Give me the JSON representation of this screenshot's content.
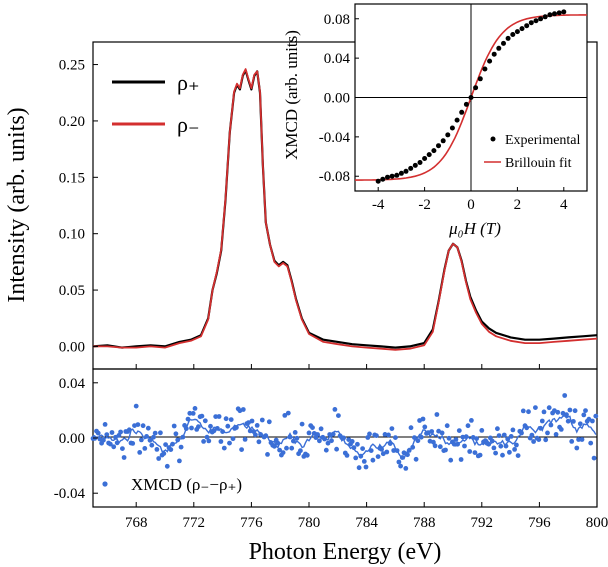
{
  "chart_data": [
    {
      "id": "main-spectrum",
      "type": "line",
      "xlabel": "",
      "ylabel": "Intensity (arb. units)",
      "xlim": [
        765,
        800
      ],
      "ylim": [
        -0.02,
        0.27
      ],
      "yticks": [
        "0.00",
        "0.05",
        "0.10",
        "0.15",
        "0.20",
        "0.25"
      ],
      "legend": {
        "placement": "top-left"
      },
      "series": [
        {
          "name": "ρ₊",
          "color": "#000000",
          "x": [
            765,
            766,
            767,
            768,
            769,
            770,
            771,
            771.8,
            772.5,
            773,
            773.3,
            773.6,
            773.9,
            774.2,
            774.5,
            774.8,
            775.0,
            775.2,
            775.4,
            775.6,
            775.8,
            776.0,
            776.2,
            776.4,
            776.6,
            776.8,
            777.0,
            777.3,
            777.6,
            777.9,
            778.2,
            778.5,
            778.8,
            779.1,
            779.5,
            780,
            781,
            782,
            783,
            784,
            785,
            786,
            787,
            788,
            788.6,
            789.0,
            789.4,
            789.7,
            790.0,
            790.3,
            790.6,
            790.9,
            791.2,
            791.6,
            792.0,
            792.5,
            793,
            794,
            795,
            796,
            797,
            798,
            799,
            800
          ],
          "y": [
            0.0,
            0.001,
            -0.001,
            0.0,
            0.001,
            0.0,
            0.004,
            0.006,
            0.01,
            0.025,
            0.05,
            0.065,
            0.085,
            0.13,
            0.19,
            0.225,
            0.232,
            0.228,
            0.24,
            0.245,
            0.236,
            0.228,
            0.24,
            0.244,
            0.225,
            0.16,
            0.11,
            0.09,
            0.076,
            0.072,
            0.075,
            0.072,
            0.058,
            0.042,
            0.025,
            0.012,
            0.006,
            0.004,
            0.002,
            0.001,
            0.0,
            -0.001,
            0.0,
            0.003,
            0.015,
            0.04,
            0.068,
            0.085,
            0.091,
            0.088,
            0.076,
            0.058,
            0.044,
            0.032,
            0.022,
            0.016,
            0.012,
            0.008,
            0.006,
            0.006,
            0.007,
            0.008,
            0.009,
            0.01
          ]
        },
        {
          "name": "ρ₋",
          "color": "#d32f2f",
          "x": [
            765,
            766,
            767,
            768,
            769,
            770,
            771,
            771.8,
            772.5,
            773,
            773.3,
            773.6,
            773.9,
            774.2,
            774.5,
            774.8,
            775.0,
            775.2,
            775.4,
            775.6,
            775.8,
            776.0,
            776.2,
            776.4,
            776.6,
            776.8,
            777.0,
            777.3,
            777.6,
            777.9,
            778.2,
            778.5,
            778.8,
            779.1,
            779.5,
            780,
            781,
            782,
            783,
            784,
            785,
            786,
            787,
            788,
            788.6,
            789.0,
            789.4,
            789.7,
            790.0,
            790.3,
            790.6,
            790.9,
            791.2,
            791.6,
            792.0,
            792.5,
            793,
            794,
            795,
            796,
            797,
            798,
            799,
            800
          ],
          "y": [
            0.0,
            0.0,
            -0.001,
            -0.001,
            0.0,
            -0.001,
            0.003,
            0.005,
            0.009,
            0.024,
            0.05,
            0.066,
            0.086,
            0.131,
            0.19,
            0.226,
            0.233,
            0.229,
            0.241,
            0.246,
            0.237,
            0.229,
            0.241,
            0.244,
            0.226,
            0.16,
            0.11,
            0.09,
            0.075,
            0.071,
            0.074,
            0.071,
            0.057,
            0.041,
            0.024,
            0.011,
            0.004,
            0.002,
            0.0,
            -0.001,
            -0.002,
            -0.003,
            -0.002,
            0.001,
            0.013,
            0.039,
            0.067,
            0.085,
            0.091,
            0.088,
            0.075,
            0.057,
            0.042,
            0.03,
            0.02,
            0.013,
            0.009,
            0.005,
            0.003,
            0.003,
            0.004,
            0.005,
            0.006,
            0.007
          ]
        }
      ]
    },
    {
      "id": "xmcd-difference",
      "type": "scatter",
      "xlabel": "Photon Energy (eV)",
      "ylabel": "",
      "xlim": [
        765,
        800
      ],
      "ylim": [
        -0.05,
        0.05
      ],
      "xticks": [
        768,
        772,
        776,
        780,
        784,
        788,
        792,
        796,
        800
      ],
      "yticks": [
        "0.04",
        "0.00",
        "-0.04"
      ],
      "legend": {
        "placement": "bottom-left"
      },
      "series": [
        {
          "name": "XMCD (ρ₋−ρ₊)",
          "color": "#3b6fd6",
          "x_start": 765,
          "x_step": 0.12,
          "trend": [
            [
              765,
              0.005
            ],
            [
              766,
              0.002
            ],
            [
              767,
              0.0
            ],
            [
              768,
              0.003
            ],
            [
              769,
              0.0
            ],
            [
              770,
              -0.002
            ],
            [
              771,
              0.002
            ],
            [
              772,
              0.006
            ],
            [
              773,
              0.008
            ],
            [
              774,
              0.01
            ],
            [
              775,
              0.01
            ],
            [
              776,
              0.006
            ],
            [
              777,
              0.002
            ],
            [
              778,
              0.0
            ],
            [
              779,
              0.001
            ],
            [
              780,
              0.003
            ],
            [
              781,
              0.004
            ],
            [
              782,
              0.001
            ],
            [
              783,
              -0.004
            ],
            [
              784,
              -0.007
            ],
            [
              785,
              -0.008
            ],
            [
              786,
              -0.006
            ],
            [
              787,
              -0.004
            ],
            [
              788,
              0.0
            ],
            [
              789,
              0.002
            ],
            [
              790,
              0.001
            ],
            [
              791,
              -0.003
            ],
            [
              792,
              -0.006
            ],
            [
              793,
              -0.004
            ],
            [
              794,
              0.001
            ],
            [
              795,
              0.005
            ],
            [
              796,
              0.009
            ],
            [
              797,
              0.012
            ],
            [
              798,
              0.012
            ],
            [
              799,
              0.008
            ],
            [
              800,
              0.004
            ]
          ]
        }
      ]
    },
    {
      "id": "inset-hysteresis",
      "type": "scatter",
      "xlabel": "μ₀H (T)",
      "ylabel": "XMCD (arb. units)",
      "xlim": [
        -5,
        5
      ],
      "ylim": [
        -0.095,
        0.095
      ],
      "xticks": [
        "-4",
        "-2",
        "0",
        "2",
        "4"
      ],
      "yticks": [
        "0.08",
        "0.04",
        "0.00",
        "-0.04",
        "-0.08"
      ],
      "legend": {
        "placement": "bottom-right"
      },
      "series": [
        {
          "name": "Experimental",
          "color": "#000000",
          "x": [
            -4.0,
            -3.8,
            -3.6,
            -3.4,
            -3.2,
            -3.0,
            -2.8,
            -2.6,
            -2.4,
            -2.2,
            -2.0,
            -1.8,
            -1.6,
            -1.4,
            -1.2,
            -1.0,
            -0.8,
            -0.6,
            -0.4,
            -0.2,
            0.0,
            0.2,
            0.4,
            0.6,
            0.8,
            1.0,
            1.2,
            1.4,
            1.6,
            1.8,
            2.0,
            2.2,
            2.4,
            2.6,
            2.8,
            3.0,
            3.2,
            3.4,
            3.6,
            3.8,
            4.0
          ],
          "y": [
            -0.085,
            -0.083,
            -0.081,
            -0.08,
            -0.079,
            -0.077,
            -0.075,
            -0.072,
            -0.069,
            -0.066,
            -0.062,
            -0.058,
            -0.054,
            -0.049,
            -0.044,
            -0.038,
            -0.031,
            -0.023,
            -0.015,
            -0.007,
            0.0,
            0.01,
            0.019,
            0.029,
            0.037,
            0.044,
            0.05,
            0.055,
            0.06,
            0.064,
            0.067,
            0.07,
            0.073,
            0.076,
            0.078,
            0.08,
            0.082,
            0.084,
            0.085,
            0.086,
            0.087
          ]
        },
        {
          "name": "Brillouin fit",
          "color": "#d32f2f",
          "amplitude": 0.084,
          "scale": 1.3
        }
      ]
    }
  ]
}
